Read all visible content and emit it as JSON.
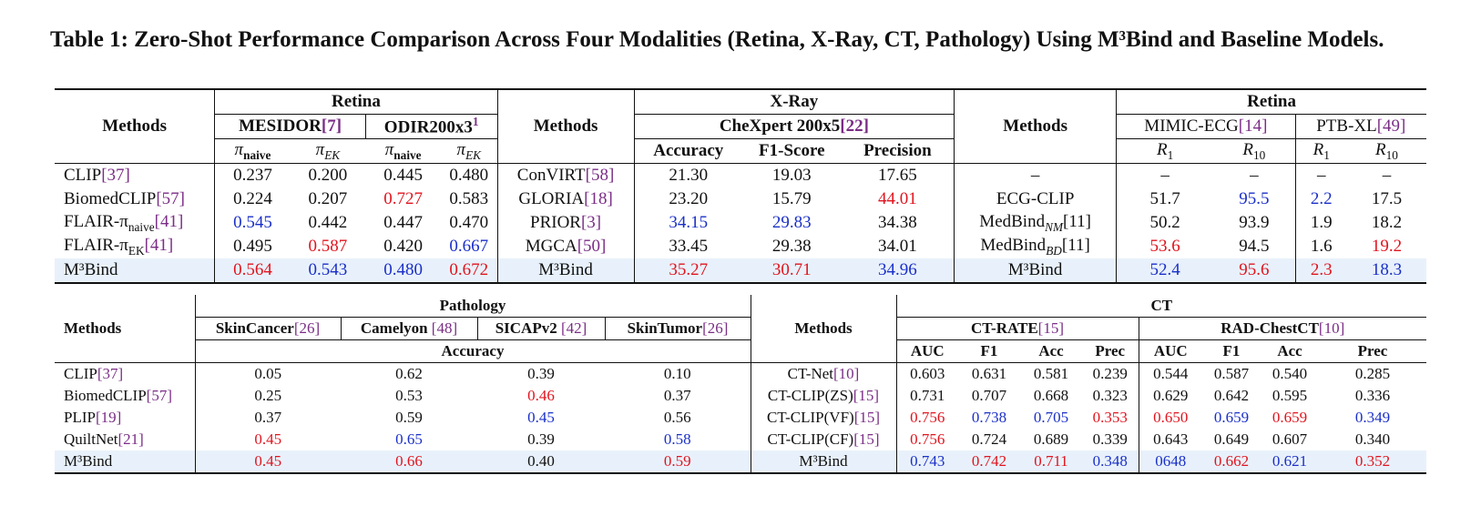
{
  "caption": "Table 1: Zero-Shot Performance Comparison Across Four Modalities (Retina, X-Ray, CT, Pathology) Using M³Bind and Baseline Models.",
  "top": {
    "headers": {
      "methods": "Methods",
      "retina": "Retina",
      "xray": "X-Ray",
      "retina2": "Retina",
      "mesidor": "MESIDOR",
      "mesidor_cite": "[7]",
      "odir": "ODIR200x3",
      "odir_sup": "1",
      "chexpert": "CheXpert 200x5",
      "chexpert_cite": "[22]",
      "mimic": "MIMIC-ECG",
      "mimic_cite": "[14]",
      "ptb": "PTB-XL",
      "ptb_cite": "[49]",
      "pi": "π",
      "naive": "naive",
      "ek": "EK",
      "accuracy": "Accuracy",
      "f1": "F1-Score",
      "precision": "Precision",
      "r": "R",
      "r1": "1",
      "r10": "10"
    },
    "rows": [
      {
        "m1": "CLIP",
        "c1": "[37]",
        "v": [
          "0.237",
          "0.200",
          "0.445",
          "0.480"
        ],
        "m2": "ConVIRT",
        "c2": "[58]",
        "x": [
          "21.30",
          "19.03",
          "17.65"
        ],
        "m3": "–",
        "e": [
          "–",
          "–",
          "–",
          "–"
        ]
      },
      {
        "m1": "BiomedCLIP",
        "c1": "[57]",
        "v": [
          "0.224",
          "0.207",
          "0.727",
          "0.583"
        ],
        "m2": "GLORIA",
        "c2": "[18]",
        "x": [
          "23.20",
          "15.79",
          "44.01"
        ],
        "m3": "ECG-CLIP",
        "e": [
          "51.7",
          "95.5",
          "2.2",
          "17.5"
        ]
      },
      {
        "m1": "FLAIR-π",
        "m1sub": "naive",
        "c1": "[41]",
        "v": [
          "0.545",
          "0.442",
          "0.447",
          "0.470"
        ],
        "m2": "PRIOR",
        "c2": "[3]",
        "x": [
          "34.15",
          "29.83",
          "34.38"
        ],
        "m3": "MedBind",
        "m3sub": "NM",
        "c3": "[11]",
        "e": [
          "50.2",
          "93.9",
          "1.9",
          "18.2"
        ]
      },
      {
        "m1": "FLAIR-π",
        "m1sub": "EK",
        "c1": "[41]",
        "v": [
          "0.495",
          "0.587",
          "0.420",
          "0.667"
        ],
        "m2": "MGCA",
        "c2": "[50]",
        "x": [
          "33.45",
          "29.38",
          "34.01"
        ],
        "m3": "MedBind",
        "m3sub": "BD",
        "c3": "[11]",
        "e": [
          "53.6",
          "94.5",
          "1.6",
          "19.2"
        ]
      },
      {
        "m1": "M³Bind",
        "v": [
          "0.564",
          "0.543",
          "0.480",
          "0.672"
        ],
        "m2": "M³Bind",
        "x": [
          "35.27",
          "30.71",
          "34.96"
        ],
        "m3": "M³Bind",
        "e": [
          "52.4",
          "95.6",
          "2.3",
          "18.3"
        ]
      }
    ]
  },
  "bottom": {
    "headers": {
      "methods": "Methods",
      "pathology": "Pathology",
      "ct": "CT",
      "skincancer": "SkinCancer",
      "skincancer_cite": "[26]",
      "camelyon": "Camelyon ",
      "camelyon_cite": "[48]",
      "sicap": "SICAPv2 ",
      "sicap_cite": "[42]",
      "skintumor": "SkinTumor",
      "skintumor_cite": "[26]",
      "accuracy": "Accuracy",
      "ctrate": "CT-RATE",
      "ctrate_cite": "[15]",
      "rad": "RAD-ChestCT",
      "rad_cite": "[10]",
      "auc": "AUC",
      "f1": "F1",
      "acc": "Acc",
      "prec": "Prec"
    },
    "rows": [
      {
        "m1": "CLIP",
        "c1": "[37]",
        "p": [
          "0.05",
          "0.62",
          "0.39",
          "0.10"
        ],
        "m2": "CT-Net",
        "c2": "[10]",
        "ct": [
          "0.603",
          "0.631",
          "0.581",
          "0.239",
          "0.544",
          "0.587",
          "0.540",
          "0.285"
        ]
      },
      {
        "m1": "BiomedCLIP",
        "c1": "[57]",
        "p": [
          "0.25",
          "0.53",
          "0.46",
          "0.37"
        ],
        "m2": "CT-CLIP(ZS)",
        "c2": "[15]",
        "ct": [
          "0.731",
          "0.707",
          "0.668",
          "0.323",
          "0.629",
          "0.642",
          "0.595",
          "0.336"
        ]
      },
      {
        "m1": "PLIP",
        "c1": "[19]",
        "p": [
          "0.37",
          "0.59",
          "0.45",
          "0.56"
        ],
        "m2": "CT-CLIP(VF)",
        "c2": "[15]",
        "ct": [
          "0.756",
          "0.738",
          "0.705",
          "0.353",
          "0.650",
          "0.659",
          "0.659",
          "0.349"
        ]
      },
      {
        "m1": "QuiltNet",
        "c1": "[21]",
        "p": [
          "0.45",
          "0.65",
          "0.39",
          "0.58"
        ],
        "m2": "CT-CLIP(CF)",
        "c2": "[15]",
        "ct": [
          "0.756",
          "0.724",
          "0.689",
          "0.339",
          "0.643",
          "0.649",
          "0.607",
          "0.340"
        ]
      },
      {
        "m1": "M³Bind",
        "p": [
          "0.45",
          "0.66",
          "0.40",
          "0.59"
        ],
        "m2": "M³Bind",
        "ct": [
          "0.743",
          "0.742",
          "0.711",
          "0.348",
          "0648",
          "0.662",
          "0.621",
          "0.352"
        ]
      }
    ]
  },
  "colors": {
    "best": "#e0141e",
    "second": "#1a2fc8",
    "cite": "#7a2d86",
    "highlight": "#e8f1fb"
  }
}
